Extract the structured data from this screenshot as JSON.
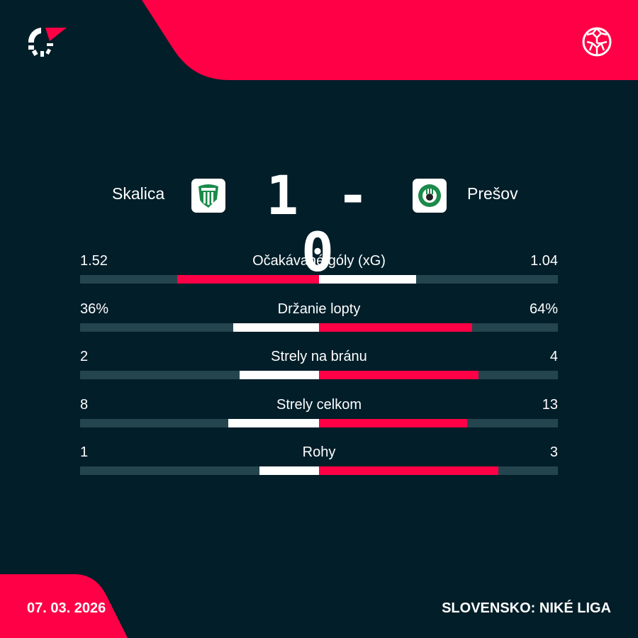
{
  "colors": {
    "background": "#011e29",
    "accent": "#ff0046",
    "track": "#24454d",
    "neutral": "#ffffff"
  },
  "header": {
    "logo_icon": "flashscore-logo",
    "sport_icon": "football-icon"
  },
  "match": {
    "home": "Skalica",
    "away": "Prešov",
    "home_score": "1",
    "separator": "-",
    "away_score": "0",
    "home_crest": "skalica-crest",
    "away_crest": "presov-crest"
  },
  "stats": [
    {
      "label": "Očakávané góly (xG)",
      "home": "1.52",
      "away": "1.04",
      "home_value": 1.52,
      "away_value": 1.04
    },
    {
      "label": "Držanie lopty",
      "home": "36%",
      "away": "64%",
      "home_value": 36,
      "away_value": 64
    },
    {
      "label": "Strely na bránu",
      "home": "2",
      "away": "4",
      "home_value": 2,
      "away_value": 4
    },
    {
      "label": "Strely celkom",
      "home": "8",
      "away": "13",
      "home_value": 8,
      "away_value": 13
    },
    {
      "label": "Rohy",
      "home": "1",
      "away": "3",
      "home_value": 1,
      "away_value": 3
    }
  ],
  "footer": {
    "date": "07. 03. 2026",
    "league": "SLOVENSKO: NIKÉ LIGA"
  }
}
